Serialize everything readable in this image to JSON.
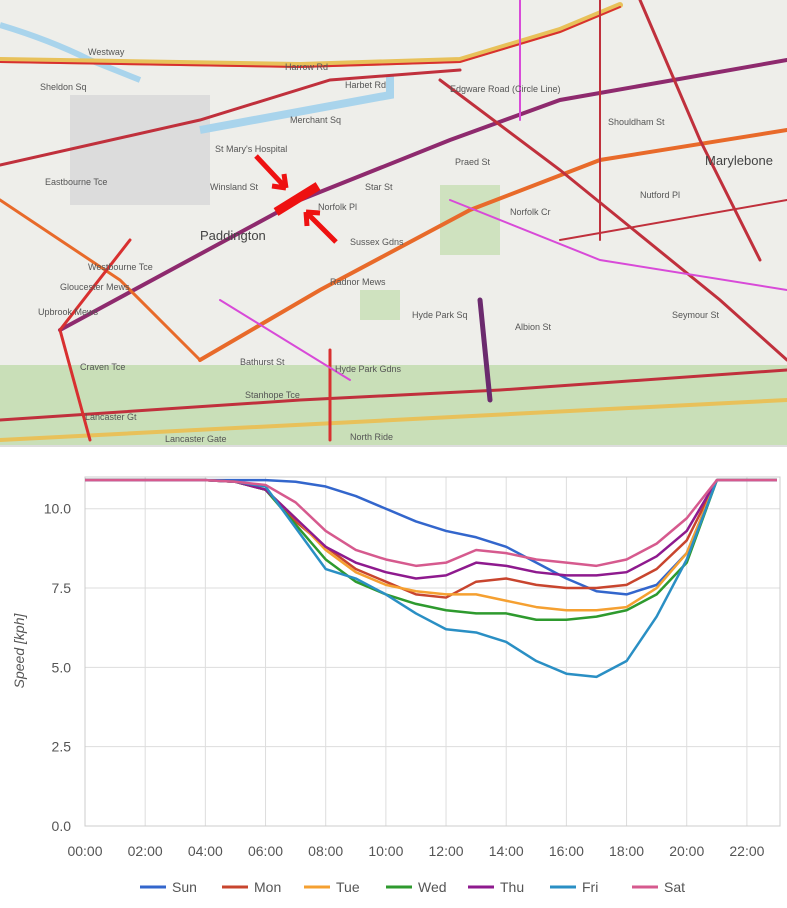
{
  "map": {
    "labels": [
      "Westway",
      "Harrow Rd",
      "Harbet Rd",
      "Merchant Sq",
      "Sheldon Sq",
      "St Mary's Hospital",
      "Norfolk Pl",
      "Winsland St",
      "Paddington",
      "Eastbourne Tce",
      "Westbourne Tce",
      "Gloucester Mews",
      "Upbrook Mews",
      "Craven Tce",
      "Lancaster Gt",
      "Lancaster Gate",
      "Bathurst St",
      "Radnor Mews",
      "Hyde Park Sq",
      "Hyde Park Gdns",
      "North Ride",
      "Edgware Road (Circle Line)",
      "Marylebone",
      "Nutford Pl",
      "Seymour St",
      "Shouldham St",
      "Sussex Gdns",
      "Praed St",
      "Star St",
      "Norfolk Cr",
      "Albion St",
      "Stanhope Tce"
    ]
  },
  "chart_data": {
    "type": "line",
    "y_label": "Speed [kph]",
    "x": [
      0,
      1,
      2,
      3,
      4,
      5,
      6,
      7,
      8,
      9,
      10,
      11,
      12,
      13,
      14,
      15,
      16,
      17,
      18,
      19,
      20,
      21,
      22,
      23
    ],
    "xlim": [
      0,
      23.1
    ],
    "xticks": [
      {
        "value": 0,
        "label": "00:00"
      },
      {
        "value": 2,
        "label": "02:00"
      },
      {
        "value": 4,
        "label": "04:00"
      },
      {
        "value": 6,
        "label": "06:00"
      },
      {
        "value": 8,
        "label": "08:00"
      },
      {
        "value": 10,
        "label": "10:00"
      },
      {
        "value": 12,
        "label": "12:00"
      },
      {
        "value": 14,
        "label": "14:00"
      },
      {
        "value": 16,
        "label": "16:00"
      },
      {
        "value": 18,
        "label": "18:00"
      },
      {
        "value": 20,
        "label": "20:00"
      },
      {
        "value": 22,
        "label": "22:00"
      }
    ],
    "ylim": [
      0,
      11
    ],
    "yticks": [
      {
        "value": 0,
        "label": "0.0"
      },
      2.5,
      {
        "value": 5,
        "label": "5.0"
      },
      7.5,
      {
        "value": 10,
        "label": "10.0"
      }
    ],
    "grid": true,
    "legend": "bottom",
    "series": [
      {
        "name": "Sun",
        "color": "#3366cc",
        "values": [
          10.9,
          10.9,
          10.9,
          10.9,
          10.9,
          10.9,
          10.9,
          10.85,
          10.7,
          10.4,
          10.0,
          9.6,
          9.3,
          9.1,
          8.8,
          8.3,
          7.8,
          7.4,
          7.3,
          7.6,
          8.6,
          10.9,
          10.9,
          10.9
        ]
      },
      {
        "name": "Mon",
        "color": "#c8452e",
        "values": [
          10.9,
          10.9,
          10.9,
          10.9,
          10.9,
          10.85,
          10.6,
          9.6,
          8.8,
          8.1,
          7.7,
          7.3,
          7.2,
          7.7,
          7.8,
          7.6,
          7.5,
          7.5,
          7.6,
          8.1,
          9.0,
          10.9,
          10.9,
          10.9
        ]
      },
      {
        "name": "Tue",
        "color": "#f5a031",
        "values": [
          10.9,
          10.9,
          10.9,
          10.9,
          10.9,
          10.85,
          10.6,
          9.7,
          8.7,
          8.0,
          7.6,
          7.4,
          7.3,
          7.3,
          7.1,
          6.9,
          6.8,
          6.8,
          6.9,
          7.5,
          8.6,
          10.9,
          10.9,
          10.9
        ]
      },
      {
        "name": "Wed",
        "color": "#2e9a2e",
        "values": [
          10.9,
          10.9,
          10.9,
          10.9,
          10.9,
          10.85,
          10.6,
          9.5,
          8.4,
          7.7,
          7.3,
          7.0,
          6.8,
          6.7,
          6.7,
          6.5,
          6.5,
          6.6,
          6.8,
          7.3,
          8.3,
          10.9,
          10.9,
          10.9
        ]
      },
      {
        "name": "Thu",
        "color": "#8e1a8e",
        "values": [
          10.9,
          10.9,
          10.9,
          10.9,
          10.9,
          10.85,
          10.6,
          9.7,
          8.8,
          8.3,
          8.0,
          7.8,
          7.9,
          8.3,
          8.2,
          8.0,
          7.9,
          7.9,
          8.0,
          8.5,
          9.3,
          10.9,
          10.9,
          10.9
        ]
      },
      {
        "name": "Fri",
        "color": "#2a8fc4",
        "values": [
          10.9,
          10.9,
          10.9,
          10.9,
          10.9,
          10.85,
          10.7,
          9.4,
          8.1,
          7.8,
          7.3,
          6.7,
          6.2,
          6.1,
          5.8,
          5.2,
          4.8,
          4.7,
          5.2,
          6.6,
          8.4,
          10.9,
          10.9,
          10.9
        ]
      },
      {
        "name": "Sat",
        "color": "#d65a8e",
        "values": [
          10.9,
          10.9,
          10.9,
          10.9,
          10.9,
          10.85,
          10.75,
          10.2,
          9.3,
          8.7,
          8.4,
          8.2,
          8.3,
          8.7,
          8.6,
          8.4,
          8.3,
          8.2,
          8.4,
          8.9,
          9.7,
          10.9,
          10.9,
          10.9
        ]
      }
    ]
  }
}
